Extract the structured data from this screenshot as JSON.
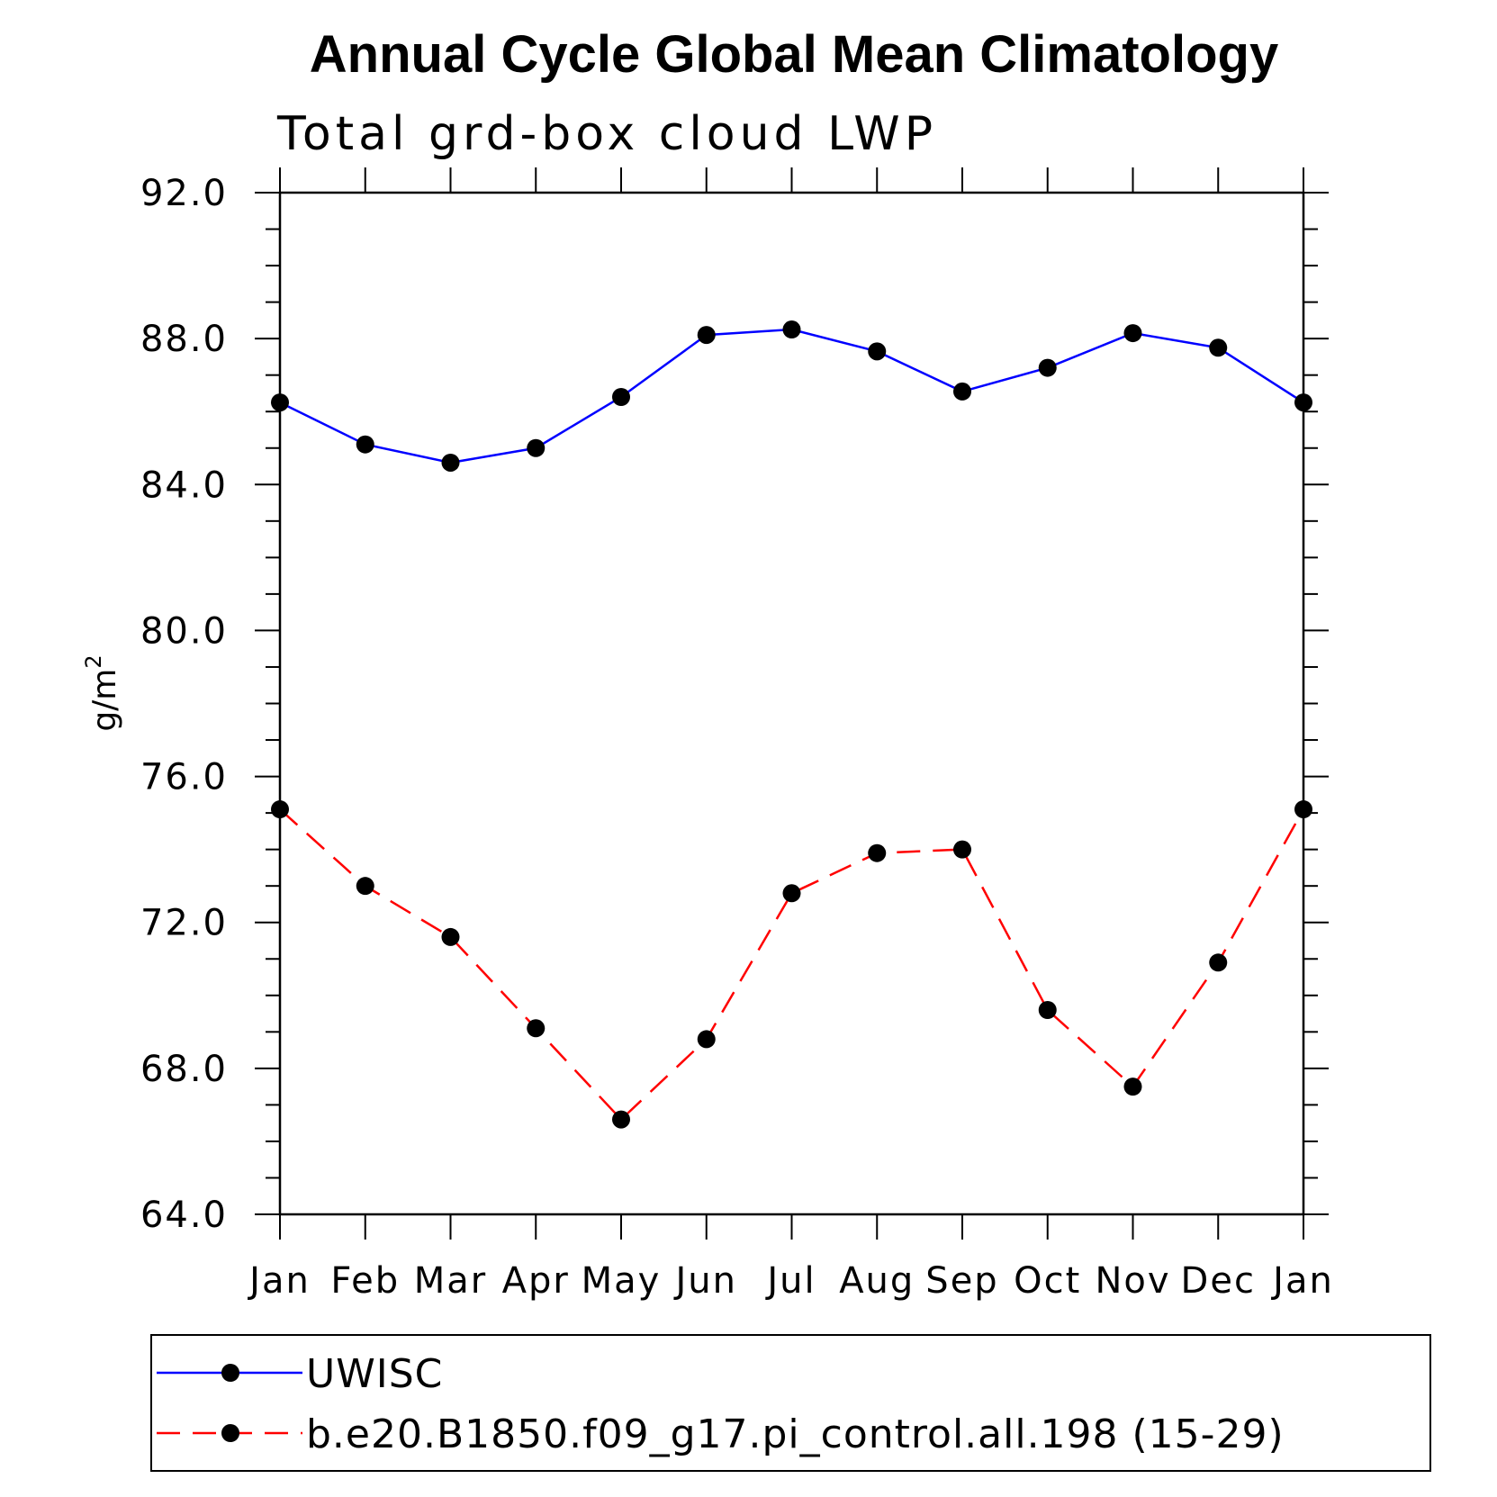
{
  "chart_data": {
    "type": "line",
    "title": "Annual Cycle Global Mean Climatology",
    "subtitle": "Total grd-box cloud LWP",
    "xlabel": "",
    "ylabel": "g/m",
    "ylabel_superscript": "2",
    "ylim": [
      64.0,
      92.0
    ],
    "y_ticks": [
      "64.0",
      "68.0",
      "72.0",
      "76.0",
      "80.0",
      "84.0",
      "88.0",
      "92.0"
    ],
    "categories": [
      "Jan",
      "Feb",
      "Mar",
      "Apr",
      "May",
      "Jun",
      "Jul",
      "Aug",
      "Sep",
      "Oct",
      "Nov",
      "Dec",
      "Jan"
    ],
    "grid": false,
    "legend_position": "bottom",
    "series": [
      {
        "name": "UWISC",
        "color": "#0000ff",
        "line_style": "solid",
        "marker": "circle",
        "values": [
          86.25,
          85.1,
          84.6,
          85.0,
          86.4,
          88.1,
          88.25,
          87.65,
          86.55,
          87.2,
          88.15,
          87.75,
          86.25
        ]
      },
      {
        "name": "b.e20.B1850.f09_g17.pi_control.all.198 (15-29)",
        "color": "#ff0000",
        "line_style": "dashed",
        "marker": "circle",
        "values": [
          75.1,
          73.0,
          71.6,
          69.1,
          66.6,
          68.8,
          72.8,
          73.9,
          74.0,
          69.6,
          67.5,
          70.9,
          75.1
        ]
      }
    ]
  }
}
